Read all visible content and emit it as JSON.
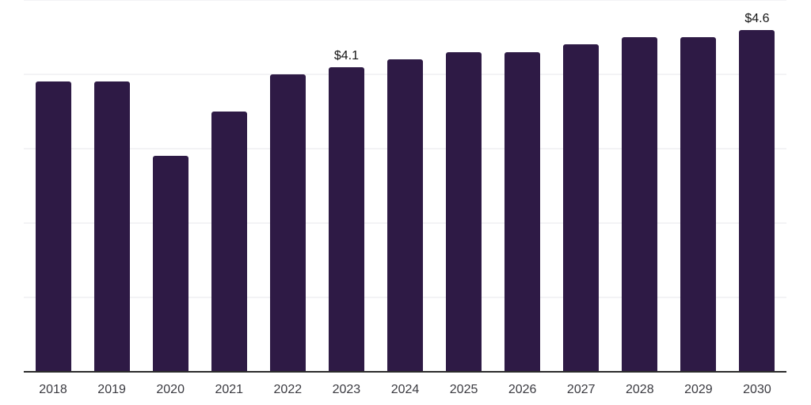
{
  "chart_data": {
    "type": "bar",
    "title": "",
    "xlabel": "",
    "ylabel": "",
    "categories": [
      "2018",
      "2019",
      "2020",
      "2021",
      "2022",
      "2023",
      "2024",
      "2025",
      "2026",
      "2027",
      "2028",
      "2029",
      "2030"
    ],
    "values": [
      3.9,
      3.9,
      2.9,
      3.5,
      4.0,
      4.1,
      4.2,
      4.3,
      4.3,
      4.4,
      4.5,
      4.5,
      4.6
    ],
    "value_labels": {
      "2023": "$4.1",
      "2030": "$4.6"
    },
    "ylim": [
      0,
      5
    ],
    "grid_interval": 1,
    "grid": true,
    "legend": false,
    "colors": {
      "bar": "#2e1a45",
      "gridline": "#f3f3f5",
      "axis": "#2b2b2b",
      "tick_label": "#3a3a40",
      "value_label": "#141414",
      "background": "#ffffff"
    }
  }
}
